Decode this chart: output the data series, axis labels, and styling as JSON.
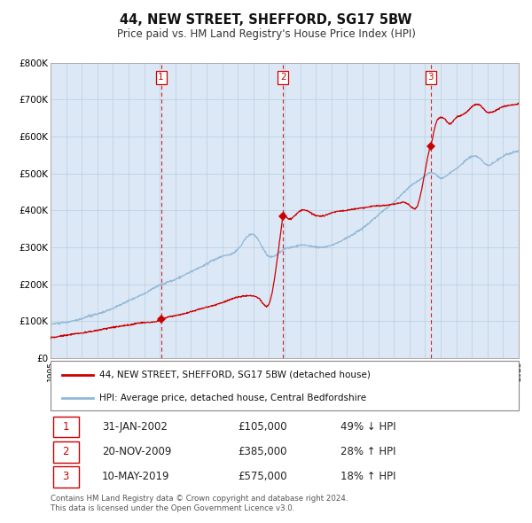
{
  "title": "44, NEW STREET, SHEFFORD, SG17 5BW",
  "subtitle": "Price paid vs. HM Land Registry's House Price Index (HPI)",
  "xlim": [
    1995,
    2025
  ],
  "ylim": [
    0,
    800000
  ],
  "yticks": [
    0,
    100000,
    200000,
    300000,
    400000,
    500000,
    600000,
    700000,
    800000
  ],
  "ytick_labels": [
    "£0",
    "£100K",
    "£200K",
    "£300K",
    "£400K",
    "£500K",
    "£600K",
    "£700K",
    "£800K"
  ],
  "sale_color": "#cc0000",
  "hpi_color": "#90b8d8",
  "plot_bg_color": "#dce8f5",
  "transactions": [
    {
      "num": 1,
      "date": "31-JAN-2002",
      "year": 2002.08,
      "price": 105000,
      "hpi_pct": "49% ↓ HPI"
    },
    {
      "num": 2,
      "date": "20-NOV-2009",
      "year": 2009.89,
      "price": 385000,
      "hpi_pct": "28% ↑ HPI"
    },
    {
      "num": 3,
      "date": "10-MAY-2019",
      "year": 2019.36,
      "price": 575000,
      "hpi_pct": "18% ↑ HPI"
    }
  ],
  "legend_label_sale": "44, NEW STREET, SHEFFORD, SG17 5BW (detached house)",
  "legend_label_hpi": "HPI: Average price, detached house, Central Bedfordshire",
  "footer": "Contains HM Land Registry data © Crown copyright and database right 2024.\nThis data is licensed under the Open Government Licence v3.0.",
  "hpi_anchors_t": [
    1995,
    1996,
    1997,
    1998,
    1999,
    2000,
    2001,
    2002,
    2003,
    2004,
    2005,
    2006,
    2007,
    2008,
    2009,
    2009.5,
    2010,
    2010.5,
    2011,
    2012,
    2013,
    2014,
    2015,
    2016,
    2017,
    2018,
    2019,
    2019.5,
    2020,
    2020.5,
    2021,
    2021.5,
    2022,
    2022.5,
    2023,
    2023.5,
    2024,
    2024.5,
    2025
  ],
  "hpi_anchors_p": [
    93000,
    97000,
    107000,
    120000,
    135000,
    155000,
    175000,
    200000,
    215000,
    235000,
    255000,
    275000,
    295000,
    335000,
    275000,
    280000,
    295000,
    300000,
    305000,
    300000,
    305000,
    325000,
    350000,
    385000,
    420000,
    460000,
    490000,
    500000,
    485000,
    495000,
    510000,
    530000,
    545000,
    540000,
    520000,
    530000,
    545000,
    555000,
    560000
  ],
  "pp_anchors_t": [
    1995,
    1996,
    1997,
    1998,
    1999,
    2000,
    2001,
    2002.08,
    2002.1,
    2003,
    2004,
    2005,
    2006,
    2007,
    2008,
    2008.5,
    2009.0,
    2009.89,
    2009.9,
    2010,
    2011,
    2012,
    2013,
    2014,
    2015,
    2016,
    2017,
    2018,
    2018.5,
    2019.36,
    2019.4,
    2019.6,
    2019.8,
    2020,
    2020.3,
    2020.5,
    2021,
    2021.5,
    2022,
    2022.5,
    2023,
    2023.5,
    2024,
    2024.5,
    2025
  ],
  "pp_anchors_p": [
    55000,
    62000,
    68000,
    75000,
    84000,
    92000,
    98000,
    105000,
    105500,
    115000,
    125000,
    138000,
    150000,
    165000,
    168000,
    155000,
    148000,
    385000,
    388000,
    390000,
    398000,
    385000,
    392000,
    400000,
    405000,
    410000,
    415000,
    412000,
    410000,
    575000,
    580000,
    620000,
    645000,
    650000,
    645000,
    635000,
    650000,
    660000,
    680000,
    685000,
    665000,
    670000,
    680000,
    685000,
    690000
  ]
}
